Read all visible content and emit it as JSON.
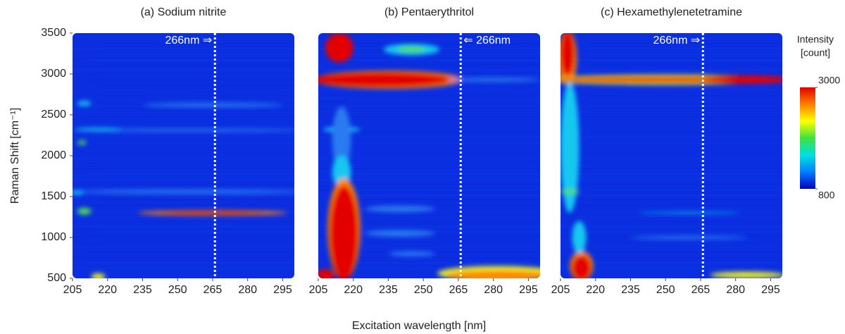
{
  "chart_data": [
    {
      "type": "heatmap",
      "title": "(a) Sodium nitrite",
      "xlim": [
        205,
        300
      ],
      "xticks": [
        205,
        220,
        235,
        250,
        265,
        280,
        295
      ],
      "ylim": [
        500,
        3500
      ],
      "yticks": [
        500,
        1000,
        1500,
        2000,
        2500,
        3000,
        3500
      ],
      "marker_x": 266,
      "annotation": "266nm ⇒"
    },
    {
      "type": "heatmap",
      "title": "(b) Pentaerythritol",
      "xlim": [
        205,
        300
      ],
      "xticks": [
        205,
        220,
        235,
        250,
        265,
        280,
        295
      ],
      "ylim": [
        500,
        3500
      ],
      "marker_x": 266,
      "annotation": "⇐ 266nm"
    },
    {
      "type": "heatmap",
      "title": "(c) Hexamethylenetetramine",
      "xlim": [
        205,
        300
      ],
      "xticks": [
        205,
        220,
        235,
        250,
        265,
        280,
        295
      ],
      "ylim": [
        500,
        3500
      ],
      "marker_x": 266,
      "annotation": "266nm ⇒"
    }
  ],
  "x_label": "Excitation wavelength [nm]",
  "y_label": "Raman Shift [cm⁻¹]",
  "colorbar": {
    "title_lines": [
      "Intensity",
      "[count]"
    ],
    "ticks": [
      800,
      3000
    ],
    "colors": [
      "#0000c8",
      "#0080ff",
      "#00e0e0",
      "#40e040",
      "#ffff00",
      "#ff8000",
      "#e00000"
    ]
  }
}
